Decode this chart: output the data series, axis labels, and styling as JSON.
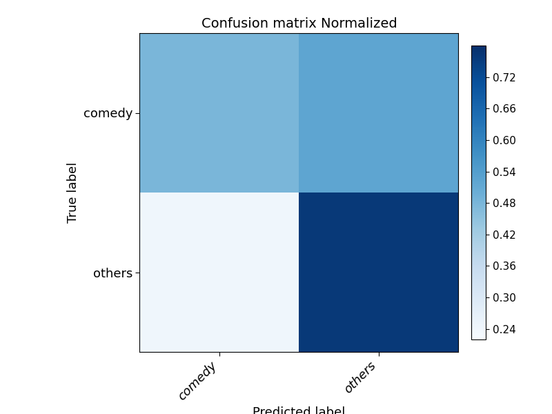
{
  "matrix": [
    [
      0.48,
      0.52
    ],
    [
      0.24,
      0.76
    ]
  ],
  "classes": [
    "comedy",
    "others"
  ],
  "title": "Confusion matrix Normalized",
  "xlabel": "Predicted label",
  "ylabel": "True label",
  "colormap": "Blues",
  "vmin": 0.22,
  "vmax": 0.78,
  "colorbar_ticks": [
    0.24,
    0.3,
    0.36,
    0.42,
    0.48,
    0.54,
    0.6,
    0.66,
    0.72
  ],
  "title_fontsize": 14,
  "label_fontsize": 13,
  "tick_fontsize": 13,
  "colorbar_fontsize": 11,
  "figsize": [
    8.0,
    6.0
  ]
}
